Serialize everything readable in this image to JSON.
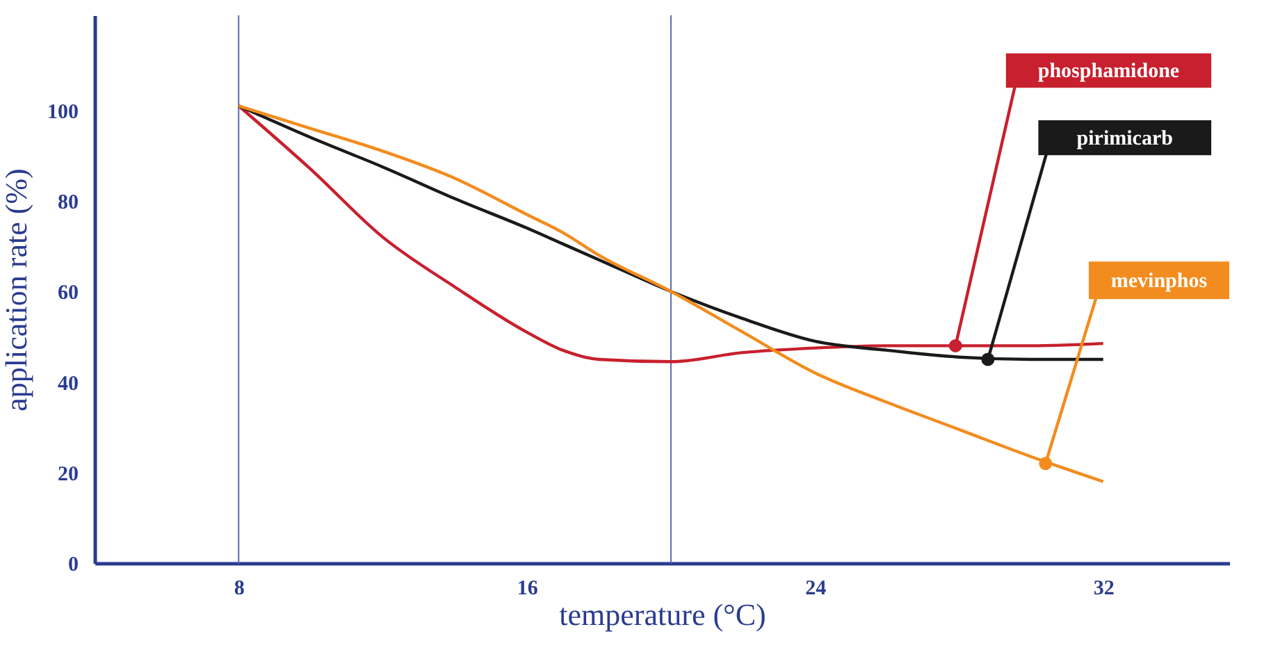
{
  "chart_data": {
    "type": "line",
    "xlabel": "temperature (°C)",
    "ylabel": "application rate (%)",
    "xlim": [
      4,
      35.5
    ],
    "xticks": [
      8,
      16,
      24,
      32
    ],
    "ylim": [
      0,
      121
    ],
    "yticks": [
      0,
      20,
      40,
      60,
      80,
      100
    ],
    "x": [
      8,
      10,
      12,
      14,
      16,
      17,
      18,
      20,
      22,
      24,
      26,
      28,
      30,
      32
    ],
    "series": [
      {
        "color": "#c8202e",
        "values": [
          101,
          87,
          72,
          61,
          51,
          47,
          45,
          44.5,
          46.5,
          47.5,
          48,
          48,
          48,
          48.5
        ]
      },
      {
        "color": "#1a1a1a",
        "values": [
          101,
          94,
          87.5,
          80.5,
          74,
          70.5,
          67,
          60,
          54,
          49,
          47,
          45.5,
          45,
          45
        ]
      },
      {
        "color": "#f28c1e",
        "values": [
          101,
          96,
          91,
          85,
          77,
          73,
          68,
          60,
          51,
          42,
          35.5,
          29.5,
          23.5,
          18
        ]
      }
    ],
    "annotations": [
      {
        "text": "phosphamidone",
        "x": 27.9,
        "y": 48
      },
      {
        "text": "pirimicarb",
        "x": 28.8,
        "y": 45
      },
      {
        "text": "mevinphos",
        "x": 30.4,
        "y": 22
      }
    ],
    "ref_lines": [
      {
        "axis": "x",
        "value": 8,
        "color": "#5a6cb0"
      },
      {
        "axis": "x",
        "value": 20,
        "color": "#5a6cb0"
      }
    ],
    "grid": false,
    "marker": "none",
    "line_style": "solid"
  }
}
